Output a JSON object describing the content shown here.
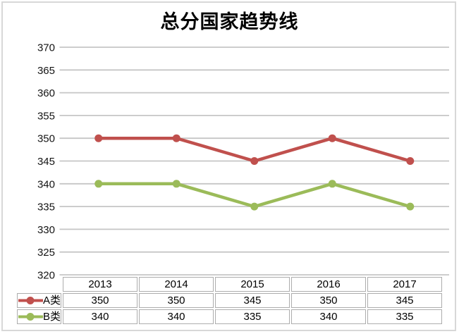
{
  "chart_data": {
    "type": "line",
    "title": "总分国家趋势线",
    "x": [
      "2013",
      "2014",
      "2015",
      "2016",
      "2017"
    ],
    "series": [
      {
        "name": "A类",
        "color": "#c0504d",
        "values": [
          350,
          350,
          345,
          350,
          345
        ]
      },
      {
        "name": "B类",
        "color": "#9bbb59",
        "values": [
          340,
          340,
          335,
          340,
          335
        ]
      }
    ],
    "ylim": [
      320,
      370
    ],
    "yticks": [
      370,
      365,
      360,
      355,
      350,
      345,
      340,
      335,
      330,
      325,
      320
    ],
    "grid": true,
    "gridline_color": "#c6c6c6",
    "background": "#ffffff",
    "border_color": "#d8d8d8",
    "legend_position": "data-table-left",
    "data_table": true,
    "marker": "circle"
  }
}
